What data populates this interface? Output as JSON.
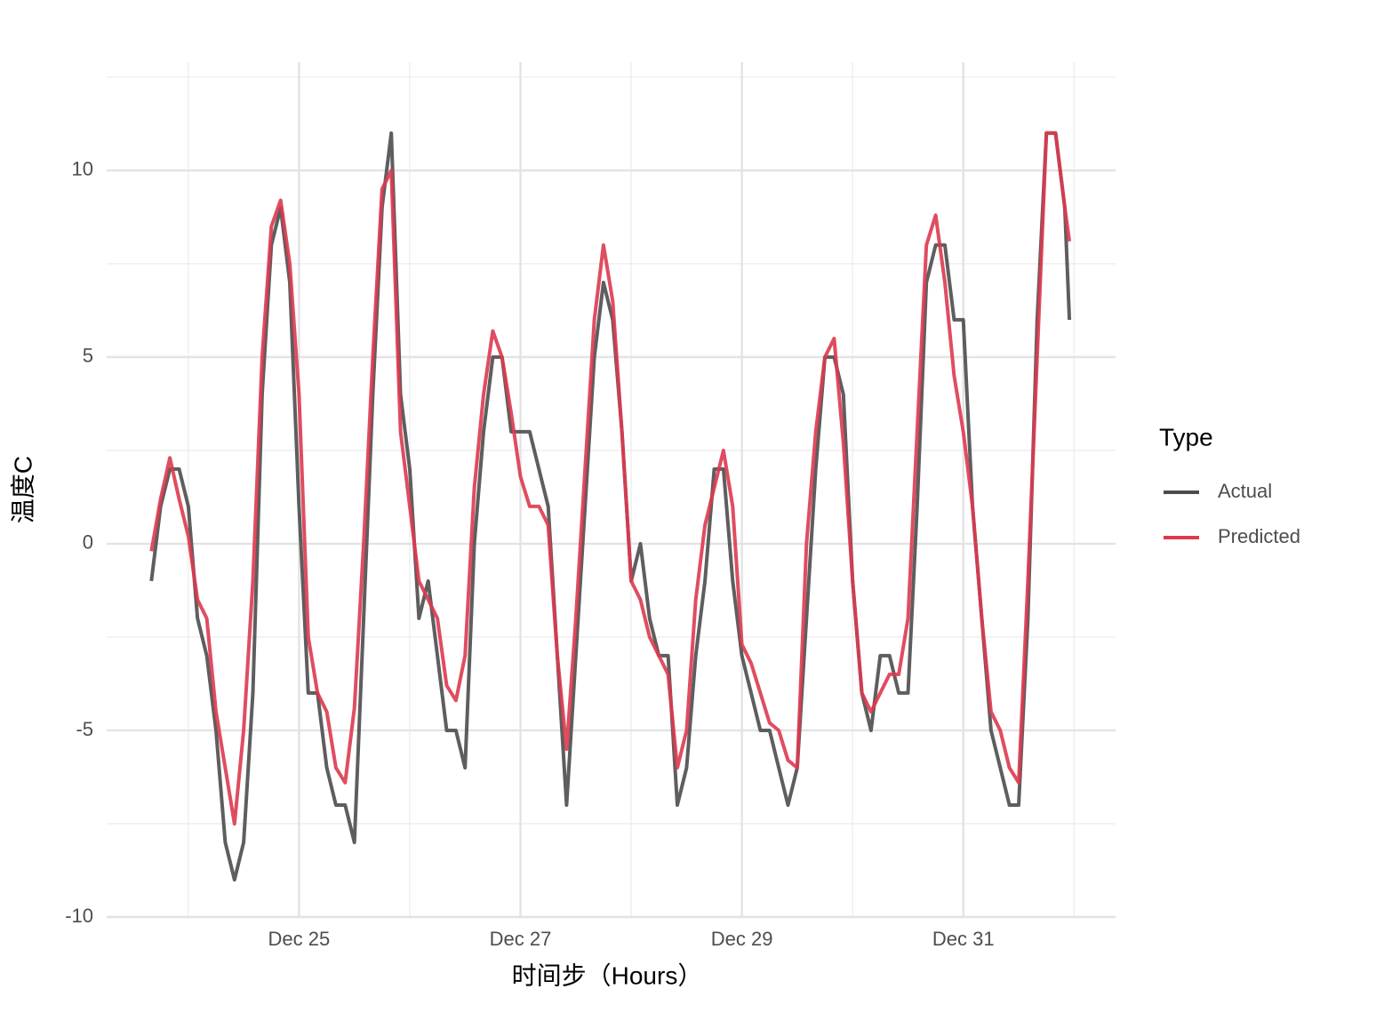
{
  "chart_data": {
    "type": "line",
    "x_label": "时间步（Hours）",
    "y_label": "温度C",
    "legend_title": "Type",
    "legend_position": "right",
    "grid": true,
    "x": [
      -8,
      -6,
      -4,
      -2,
      0,
      2,
      4,
      6,
      8,
      10,
      12,
      14,
      16,
      18,
      20,
      22,
      24,
      26,
      28,
      30,
      32,
      34,
      36,
      38,
      40,
      42,
      44,
      46,
      48,
      50,
      52,
      54,
      56,
      58,
      60,
      62,
      64,
      66,
      68,
      70,
      72,
      74,
      76,
      78,
      80,
      82,
      84,
      86,
      88,
      90,
      92,
      94,
      96,
      98,
      100,
      102,
      104,
      106,
      108,
      110,
      112,
      114,
      116,
      118,
      120,
      122,
      124,
      126,
      128,
      130,
      132,
      134,
      136,
      138,
      140,
      142,
      144,
      146,
      148,
      150,
      152,
      154,
      156,
      158,
      160,
      162,
      164,
      166,
      168,
      170,
      172,
      174,
      176,
      178,
      180,
      182,
      184,
      186,
      188,
      190,
      191
    ],
    "xlim": [
      -17.7,
      201
    ],
    "xticks": [
      {
        "value": 24,
        "label": "Dec 25"
      },
      {
        "value": 72,
        "label": "Dec 27"
      },
      {
        "value": 120,
        "label": "Dec 29"
      },
      {
        "value": 168,
        "label": "Dec 31"
      }
    ],
    "xminor": [
      0,
      48,
      96,
      144,
      192
    ],
    "ylim": [
      -10,
      12.9
    ],
    "yticks": [
      -10,
      -5,
      0,
      5,
      10
    ],
    "yminor": [
      -7.5,
      -2.5,
      2.5,
      7.5,
      12.5
    ],
    "series": [
      {
        "name": "Actual",
        "color": "#4d4d4d",
        "values": [
          -1,
          1,
          2,
          2,
          1,
          -2,
          -3,
          -5,
          -8,
          -9,
          -8,
          -4,
          4,
          8,
          9,
          7,
          1,
          -4,
          -4,
          -6,
          -7,
          -7,
          -8,
          -2,
          4,
          9,
          11,
          4,
          2,
          -2,
          -1,
          -3,
          -5,
          -5,
          -6,
          0,
          3,
          5,
          5,
          3,
          3,
          3,
          2,
          1,
          -3,
          -7,
          -3,
          1,
          5,
          7,
          6,
          3,
          -1,
          0,
          -2,
          -3,
          -3,
          -7,
          -6,
          -3,
          -1,
          2,
          2,
          -1,
          -3,
          -4,
          -5,
          -5,
          -6,
          -7,
          -6,
          -2,
          2,
          5,
          5,
          4,
          -1,
          -4,
          -5,
          -3,
          -3,
          -4,
          -4,
          1,
          7,
          8,
          8,
          6,
          6,
          1,
          -2,
          -5,
          -6,
          -7,
          -7,
          -2,
          6,
          11,
          11,
          9,
          6
        ]
      },
      {
        "name": "Predicted",
        "color": "#dc3a4f",
        "values": [
          -0.2,
          1.2,
          2.3,
          1.2,
          0.2,
          -1.5,
          -2,
          -4.5,
          -6,
          -7.5,
          -5,
          -1,
          5,
          8.5,
          9.2,
          7.5,
          4,
          -2.5,
          -4,
          -4.5,
          -6,
          -6.4,
          -4.4,
          0,
          5,
          9.5,
          10,
          3,
          1,
          -1,
          -1.5,
          -2,
          -3.8,
          -4.2,
          -3,
          1.5,
          4,
          5.7,
          5,
          3.5,
          1.8,
          1,
          1,
          0.5,
          -3,
          -5.5,
          -2,
          2,
          6,
          8,
          6.5,
          3,
          -1,
          -1.5,
          -2.5,
          -3,
          -3.5,
          -6,
          -5,
          -1.5,
          0.5,
          1.5,
          2.5,
          1,
          -2.7,
          -3.2,
          -4,
          -4.8,
          -5,
          -5.8,
          -6,
          0,
          3,
          5,
          5.5,
          2.7,
          -1,
          -4,
          -4.5,
          -4,
          -3.5,
          -3.5,
          -2,
          3,
          8,
          8.8,
          7,
          4.5,
          3,
          1,
          -2,
          -4.5,
          -5,
          -6,
          -6.4,
          -1,
          5,
          11,
          11,
          9,
          8.1
        ]
      }
    ]
  }
}
